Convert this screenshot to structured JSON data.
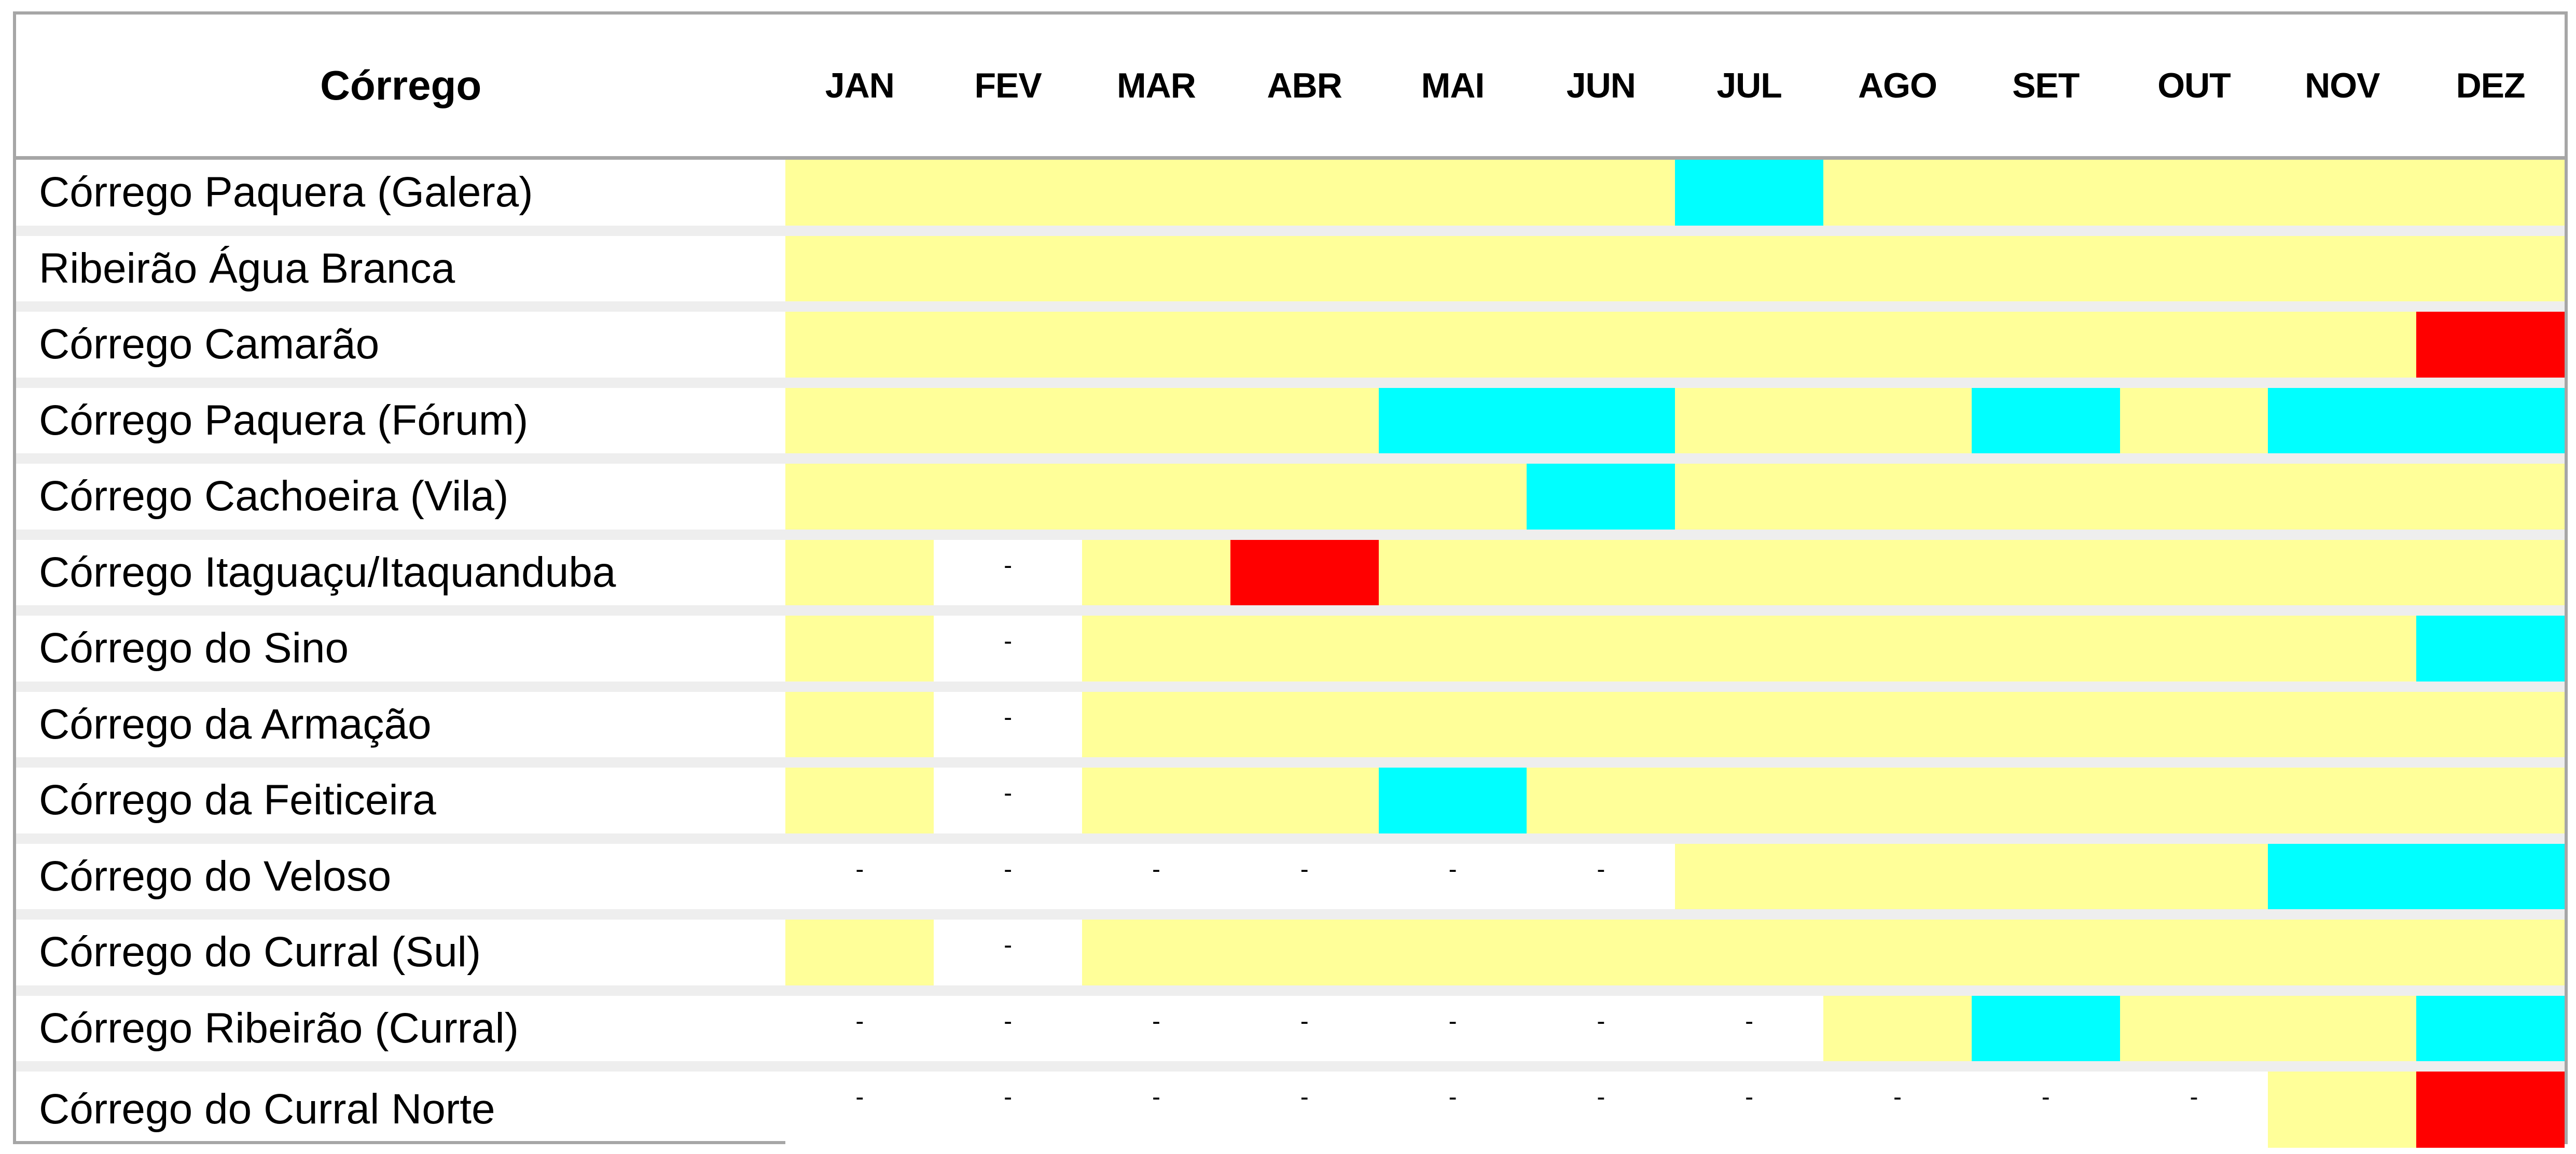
{
  "header": {
    "label_column": "Córrego",
    "months": [
      "JAN",
      "FEV",
      "MAR",
      "ABR",
      "MAI",
      "JUN",
      "JUL",
      "AGO",
      "SET",
      "OUT",
      "NOV",
      "DEZ"
    ]
  },
  "status_colors": {
    "Y": "#ffff99",
    "C": "#00ffff",
    "R": "#ff0000",
    "W": "#ffffff"
  },
  "empty_mark": "-",
  "rows": [
    {
      "name": "Córrego Paquera (Galera)",
      "cells": [
        "Y",
        "Y",
        "Y",
        "Y",
        "Y",
        "Y",
        "C",
        "Y",
        "Y",
        "Y",
        "Y",
        "Y"
      ]
    },
    {
      "name": "Ribeirão Água Branca",
      "cells": [
        "Y",
        "Y",
        "Y",
        "Y",
        "Y",
        "Y",
        "Y",
        "Y",
        "Y",
        "Y",
        "Y",
        "Y"
      ]
    },
    {
      "name": "Córrego Camarão",
      "cells": [
        "Y",
        "Y",
        "Y",
        "Y",
        "Y",
        "Y",
        "Y",
        "Y",
        "Y",
        "Y",
        "Y",
        "R"
      ]
    },
    {
      "name": "Córrego Paquera (Fórum)",
      "cells": [
        "Y",
        "Y",
        "Y",
        "Y",
        "C",
        "C",
        "Y",
        "Y",
        "C",
        "Y",
        "C",
        "C"
      ]
    },
    {
      "name": "Córrego Cachoeira (Vila)",
      "cells": [
        "Y",
        "Y",
        "Y",
        "Y",
        "Y",
        "C",
        "Y",
        "Y",
        "Y",
        "Y",
        "Y",
        "Y"
      ]
    },
    {
      "name": "Córrego Itaguaçu/Itaquanduba",
      "cells": [
        "Y",
        "W",
        "Y",
        "R",
        "Y",
        "Y",
        "Y",
        "Y",
        "Y",
        "Y",
        "Y",
        "Y"
      ]
    },
    {
      "name": "Córrego do Sino",
      "cells": [
        "Y",
        "W",
        "Y",
        "Y",
        "Y",
        "Y",
        "Y",
        "Y",
        "Y",
        "Y",
        "Y",
        "C"
      ]
    },
    {
      "name": "Córrego da Armação",
      "cells": [
        "Y",
        "W",
        "Y",
        "Y",
        "Y",
        "Y",
        "Y",
        "Y",
        "Y",
        "Y",
        "Y",
        "Y"
      ]
    },
    {
      "name": "Córrego da Feiticeira",
      "cells": [
        "Y",
        "W",
        "Y",
        "Y",
        "C",
        "Y",
        "Y",
        "Y",
        "Y",
        "Y",
        "Y",
        "Y"
      ]
    },
    {
      "name": "Córrego do Veloso",
      "cells": [
        "W",
        "W",
        "W",
        "W",
        "W",
        "W",
        "Y",
        "Y",
        "Y",
        "Y",
        "C",
        "C"
      ]
    },
    {
      "name": "Córrego do Curral (Sul)",
      "cells": [
        "Y",
        "W",
        "Y",
        "Y",
        "Y",
        "Y",
        "Y",
        "Y",
        "Y",
        "Y",
        "Y",
        "Y"
      ]
    },
    {
      "name": "Córrego Ribeirão (Curral)",
      "cells": [
        "W",
        "W",
        "W",
        "W",
        "W",
        "W",
        "W",
        "Y",
        "C",
        "Y",
        "Y",
        "C"
      ]
    },
    {
      "name": "Córrego do Curral Norte",
      "cells": [
        "W",
        "W",
        "W",
        "W",
        "W",
        "W",
        "W",
        "W",
        "W",
        "W",
        "Y",
        "R"
      ]
    }
  ]
}
